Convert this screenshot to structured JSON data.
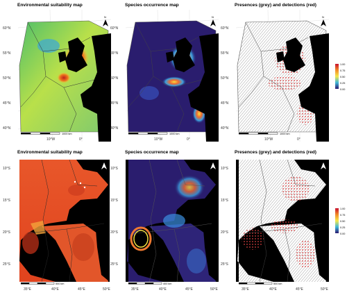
{
  "panels": {
    "top": [
      {
        "title": "Environmental suitability map",
        "scale_label": "1000 km"
      },
      {
        "title": "Species occurrence map",
        "scale_label": "1000 km"
      },
      {
        "title": "Presences (grey) and detections (red)",
        "scale_label": "1000 km"
      }
    ],
    "bottom": [
      {
        "title": "Environmental suitability map",
        "scale_label": "500 km"
      },
      {
        "title": "Species occurrence map",
        "scale_label": "400 km"
      },
      {
        "title": "Presences (grey) and detections (red)",
        "scale_label": "500 km"
      }
    ]
  },
  "axes": {
    "top_lat": [
      "60°N",
      "55°N",
      "50°N",
      "45°N",
      "40°N"
    ],
    "top_lon": [
      "10°W",
      "0°"
    ],
    "bottom_lat": [
      "10°S",
      "15°S",
      "20°S",
      "25°S"
    ],
    "bottom_lon": [
      "35°E",
      "40°E",
      "45°E",
      "50°E"
    ]
  },
  "legends": {
    "top": [
      "1.00",
      "0.75",
      "0.50",
      "0.25",
      "0.00"
    ],
    "bottom": [
      "1.00",
      "0.75",
      "0.50",
      "0.25",
      "0.00"
    ]
  },
  "north_arrow": "N",
  "colors": {
    "land": "#000000",
    "suitability_low": "#8fd14a",
    "suitability_high": "#d9381e",
    "occurrence_bg": "#2a1d6e",
    "detections": "#e05050",
    "presences": "#b0b0b0"
  }
}
